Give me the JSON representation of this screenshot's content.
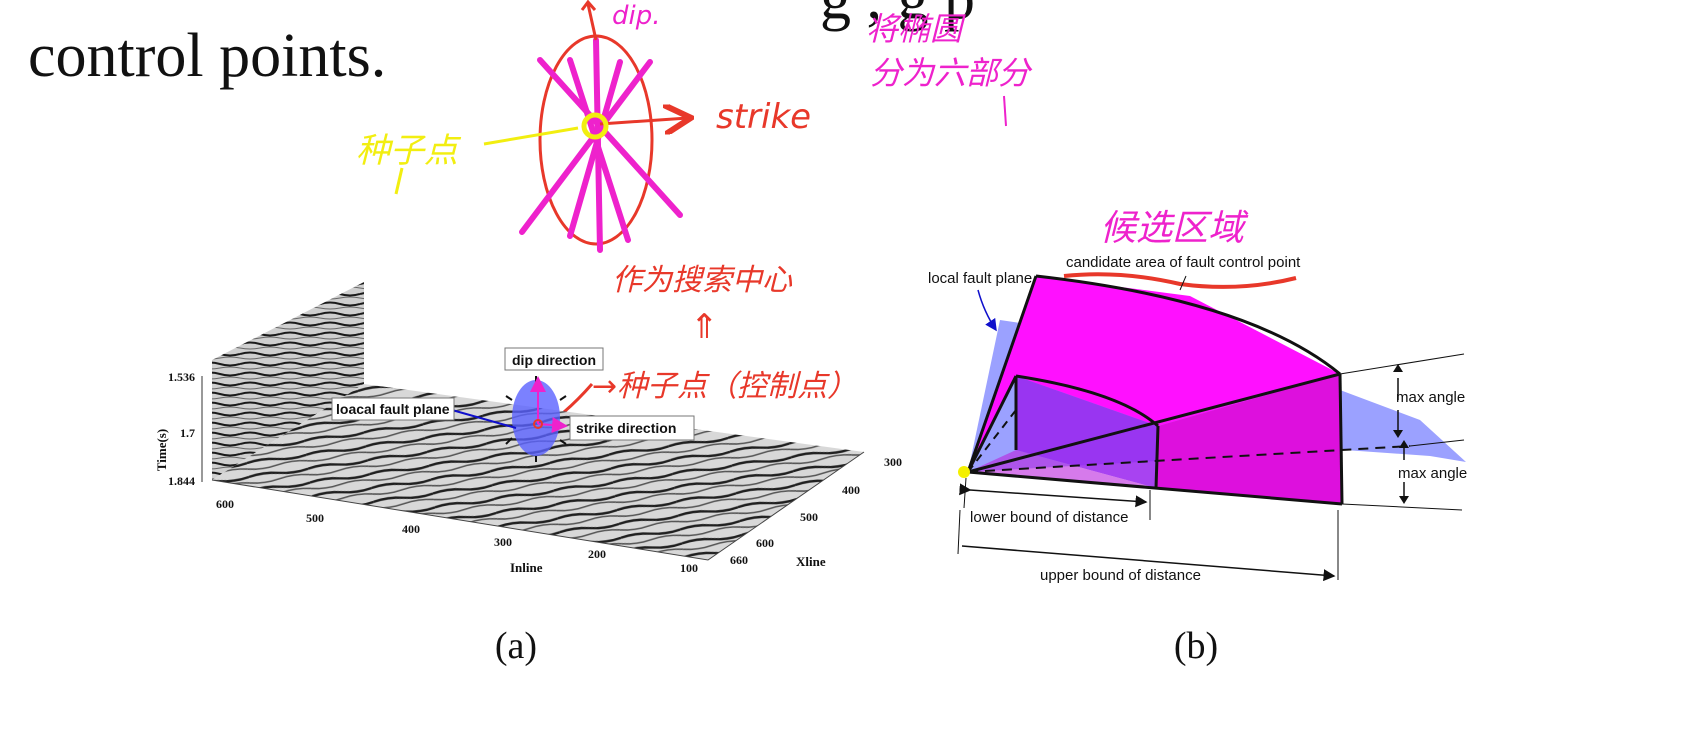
{
  "slide": {
    "heading_line1_fragment": "g    ,          g   p",
    "heading_line2": "control points."
  },
  "figure_a": {
    "caption": "(a)",
    "axis_time_label": "Time(s)",
    "time_ticks": [
      "1.536",
      "1.7",
      "1.844"
    ],
    "axis_inline_label": "Inline",
    "inline_ticks": [
      "600",
      "500",
      "400",
      "300",
      "200",
      "100"
    ],
    "axis_xline_label": "Xline",
    "xline_ticks": [
      "300",
      "400",
      "500",
      "600",
      "660"
    ],
    "label_dip_direction": "dip direction",
    "label_fault_plane": "loacal fault plane",
    "label_strike_direction": "strike direction"
  },
  "figure_b": {
    "caption": "(b)",
    "label_local_fault_plane": "local fault plane",
    "label_candidate_area": "candidate area of fault control point",
    "label_max_angle_top": "max angle",
    "label_max_angle_bottom": "max angle",
    "label_lower_bound": "lower bound of distance",
    "label_upper_bound": "upper bound of distance"
  },
  "annotations": {
    "dip": "dip.",
    "strike": "strike",
    "seed_point_yellow": "种子点",
    "split_text_line1": "将椭圆",
    "split_text_line2": "分为六部分",
    "search_center": "作为搜索中心",
    "up_arrow_glyph": "⇑",
    "seed_control_point": "→种子点（控制点）",
    "candidate_region": "候选区域"
  },
  "colors": {
    "magenta_ink": "#ee22cc",
    "red_ink": "#e8382a",
    "yellow_ink": "#f2ee10",
    "fault_plane_blue": "#7a82ff",
    "candidate_magenta": "#ff10ff"
  }
}
